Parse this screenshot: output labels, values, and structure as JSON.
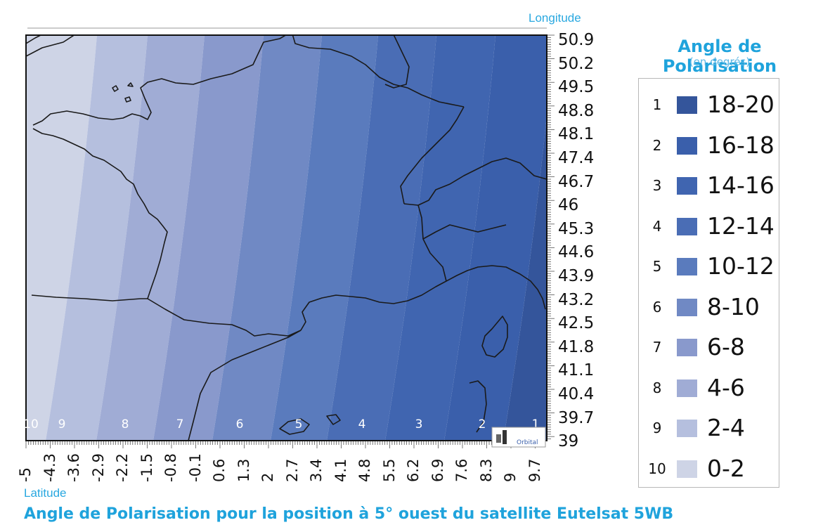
{
  "map": {
    "axis_title_longitude": "Longitude",
    "axis_title_latitude": "Latitude",
    "longitude_ticks": [
      "50.9",
      "50.2",
      "49.5",
      "48.8",
      "48.1",
      "47.4",
      "46.7",
      "46",
      "45.3",
      "44.6",
      "43.9",
      "43.2",
      "42.5",
      "41.8",
      "41.1",
      "40.4",
      "39.7",
      "39"
    ],
    "latitude_ticks": [
      "-5",
      "-4.3",
      "-3.6",
      "-2.9",
      "-2.2",
      "-1.5",
      "-0.8",
      "-0.1",
      "0.6",
      "1.3",
      "2",
      "2.7",
      "3.4",
      "4.1",
      "4.8",
      "5.5",
      "6.2",
      "6.9",
      "7.6",
      "8.3",
      "9",
      "9.7"
    ],
    "zone_labels": [
      "10",
      "9",
      "8",
      "7",
      "6",
      "5",
      "4",
      "3",
      "2",
      "1"
    ],
    "logo_text": "Orbital",
    "colors": {
      "zone_1": "#34559b",
      "zone_2": "#3a5fab",
      "zone_3": "#4065b0",
      "zone_4": "#4a6db5",
      "zone_5": "#5a7bbd",
      "zone_6": "#7089c4",
      "zone_7": "#8999cc",
      "zone_8": "#a0acd5",
      "zone_9": "#b5bfde",
      "zone_10": "#ced4e6",
      "coastline": "#1a1a1a"
    }
  },
  "legend": {
    "title": "Angle de Polarisation",
    "subtitle": "(en degrés)",
    "items": [
      {
        "num": "1",
        "range": "18-20",
        "color": "#34559b"
      },
      {
        "num": "2",
        "range": "16-18",
        "color": "#3a5fab"
      },
      {
        "num": "3",
        "range": "14-16",
        "color": "#4065b0"
      },
      {
        "num": "4",
        "range": "12-14",
        "color": "#4a6db5"
      },
      {
        "num": "5",
        "range": "10-12",
        "color": "#5a7bbd"
      },
      {
        "num": "6",
        "range": "8-10",
        "color": "#7089c4"
      },
      {
        "num": "7",
        "range": "6-8",
        "color": "#8999cc"
      },
      {
        "num": "8",
        "range": "4-6",
        "color": "#a0acd5"
      },
      {
        "num": "9",
        "range": "2-4",
        "color": "#b5bfde"
      },
      {
        "num": "10",
        "range": "0-2",
        "color": "#ced4e6"
      }
    ]
  },
  "caption": "Angle de Polarisation pour la position à 5° ouest du satellite Eutelsat 5WB"
}
